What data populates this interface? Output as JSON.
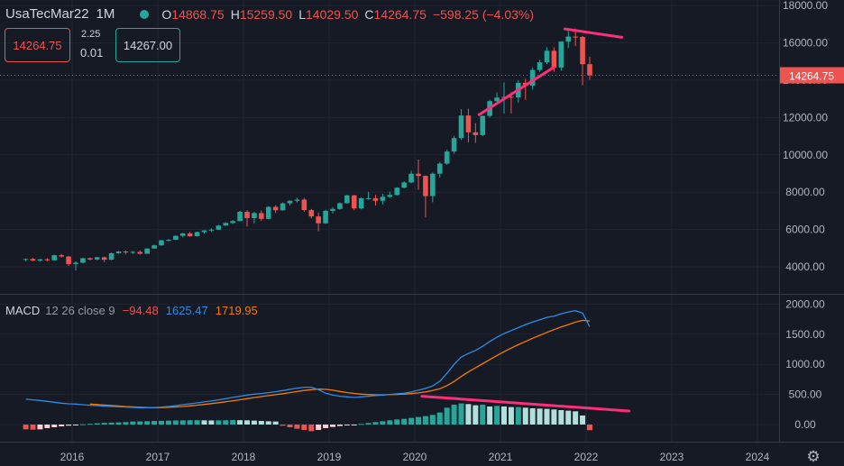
{
  "header": {
    "symbol": "UsaTecMar22",
    "timeframe": "1M",
    "open_label": "O",
    "open": "14868.75",
    "high_label": "H",
    "high": "15259.50",
    "low_label": "L",
    "low": "14029.50",
    "close_label": "C",
    "close": "14264.75",
    "change": "−598.25 (−4.03%)"
  },
  "trade": {
    "sell": "14264.75",
    "buy": "14267.00",
    "spread_top": "2.25",
    "spread_bottom": "0.01"
  },
  "price_label": "14264.75",
  "macd": {
    "name": "MACD",
    "params": "12 26 close 9",
    "hist": "−94.48",
    "macd": "1625.47",
    "signal": "1719.95"
  },
  "colors": {
    "bg": "#161a25",
    "up": "#26a69a",
    "down": "#ef5350",
    "macd": "#2e8be6",
    "signal": "#f57c00",
    "trendline": "#ff2e7a"
  },
  "chart_data": [
    {
      "type": "candlestick",
      "x_ticks": [
        "2016",
        "2017",
        "2018",
        "2019",
        "2020",
        "2021",
        "2022",
        "2023",
        "2024"
      ],
      "y_ticks": [
        "4000.00",
        "6000.00",
        "8000.00",
        "10000.00",
        "12000.00",
        "14000.00",
        "16000.00",
        "18000.00"
      ],
      "ylim": [
        3000,
        18000
      ],
      "x_start": "2015-06",
      "candles": [
        [
          4380,
          4450,
          4290,
          4420
        ],
        [
          4420,
          4480,
          4300,
          4330
        ],
        [
          4330,
          4420,
          4280,
          4400
        ],
        [
          4400,
          4460,
          4300,
          4350
        ],
        [
          4350,
          4650,
          4330,
          4620
        ],
        [
          4620,
          4690,
          4500,
          4550
        ],
        [
          4550,
          4590,
          4050,
          4150
        ],
        [
          4150,
          4300,
          3800,
          4220
        ],
        [
          4220,
          4480,
          4180,
          4460
        ],
        [
          4460,
          4490,
          4350,
          4390
        ],
        [
          4390,
          4530,
          4350,
          4510
        ],
        [
          4510,
          4540,
          4250,
          4380
        ],
        [
          4380,
          4760,
          4350,
          4730
        ],
        [
          4730,
          4850,
          4700,
          4820
        ],
        [
          4820,
          4870,
          4660,
          4770
        ],
        [
          4770,
          4850,
          4690,
          4800
        ],
        [
          4800,
          4880,
          4660,
          4700
        ],
        [
          4700,
          4990,
          4690,
          4980
        ],
        [
          4980,
          5180,
          4960,
          5150
        ],
        [
          5150,
          5440,
          5130,
          5420
        ],
        [
          5420,
          5480,
          5360,
          5450
        ],
        [
          5450,
          5680,
          5430,
          5660
        ],
        [
          5660,
          5820,
          5580,
          5790
        ],
        [
          5790,
          5880,
          5600,
          5640
        ],
        [
          5640,
          5880,
          5620,
          5860
        ],
        [
          5860,
          5960,
          5780,
          5950
        ],
        [
          5950,
          6060,
          5860,
          5990
        ],
        [
          5990,
          6250,
          5980,
          6210
        ],
        [
          6210,
          6390,
          6200,
          6350
        ],
        [
          6350,
          6500,
          6300,
          6450
        ],
        [
          6450,
          7000,
          6430,
          6950
        ],
        [
          6950,
          7040,
          6160,
          6610
        ],
        [
          6610,
          6950,
          6320,
          6880
        ],
        [
          6880,
          7020,
          6460,
          6570
        ],
        [
          6570,
          7250,
          6560,
          7210
        ],
        [
          7210,
          7300,
          6880,
          7030
        ],
        [
          7030,
          7450,
          7000,
          7400
        ],
        [
          7400,
          7560,
          7290,
          7540
        ],
        [
          7540,
          7700,
          7450,
          7600
        ],
        [
          7600,
          7690,
          6950,
          7040
        ],
        [
          7040,
          7100,
          6600,
          6700
        ],
        [
          6700,
          6900,
          5900,
          6330
        ],
        [
          6330,
          7050,
          6290,
          7000
        ],
        [
          7000,
          7200,
          6860,
          7100
        ],
        [
          7100,
          7450,
          7060,
          7410
        ],
        [
          7410,
          7860,
          7390,
          7830
        ],
        [
          7830,
          7850,
          7030,
          7130
        ],
        [
          7130,
          7720,
          7080,
          7670
        ],
        [
          7670,
          8020,
          7600,
          7680
        ],
        [
          7680,
          7860,
          7280,
          7540
        ],
        [
          7540,
          7920,
          7340,
          7750
        ],
        [
          7750,
          8030,
          7700,
          7850
        ],
        [
          7850,
          8270,
          7820,
          8240
        ],
        [
          8240,
          8580,
          8200,
          8520
        ],
        [
          8520,
          9150,
          8480,
          8990
        ],
        [
          8990,
          9750,
          8120,
          8870
        ],
        [
          8870,
          8900,
          6650,
          7790
        ],
        [
          7790,
          9050,
          7460,
          8990
        ],
        [
          8990,
          9620,
          8780,
          9530
        ],
        [
          9530,
          10280,
          9470,
          10180
        ],
        [
          10180,
          11020,
          10060,
          10900
        ],
        [
          10900,
          12450,
          10800,
          12110
        ],
        [
          12110,
          12470,
          10660,
          11210
        ],
        [
          11210,
          11700,
          10650,
          11060
        ],
        [
          11060,
          12100,
          11000,
          12090
        ],
        [
          12090,
          12960,
          12000,
          12880
        ],
        [
          12880,
          13350,
          12720,
          13070
        ],
        [
          13070,
          13880,
          12210,
          13110
        ],
        [
          13110,
          13360,
          12210,
          13080
        ],
        [
          13080,
          13990,
          12800,
          13860
        ],
        [
          13860,
          14080,
          12950,
          13710
        ],
        [
          13710,
          14670,
          13500,
          14550
        ],
        [
          14550,
          15100,
          14440,
          14960
        ],
        [
          14960,
          15770,
          14870,
          15580
        ],
        [
          15580,
          15760,
          14450,
          14680
        ],
        [
          14680,
          16080,
          14510,
          16070
        ],
        [
          16070,
          16650,
          15720,
          16340
        ],
        [
          16340,
          16770,
          15830,
          16320
        ],
        [
          16320,
          16370,
          13730,
          14860
        ],
        [
          14860,
          15260,
          14030,
          14265
        ]
      ]
    },
    {
      "type": "macd",
      "params": "12 26 close 9",
      "y_ticks": [
        "0.00",
        "500.00",
        "1000.00",
        "1500.00",
        "2000.00"
      ],
      "ylim": [
        -300,
        2100
      ],
      "macd": [
        420,
        410,
        400,
        385,
        370,
        355,
        345,
        340,
        330,
        320,
        315,
        305,
        300,
        296,
        290,
        285,
        280,
        278,
        280,
        290,
        300,
        315,
        330,
        345,
        360,
        375,
        390,
        410,
        430,
        450,
        470,
        490,
        505,
        515,
        530,
        545,
        565,
        585,
        605,
        620,
        620,
        580,
        520,
        490,
        470,
        460,
        450,
        460,
        470,
        480,
        490,
        500,
        510,
        520,
        540,
        570,
        600,
        640,
        720,
        850,
        1000,
        1120,
        1180,
        1230,
        1300,
        1380,
        1450,
        1510,
        1560,
        1610,
        1660,
        1700,
        1740,
        1780,
        1800,
        1840,
        1870,
        1890,
        1850,
        1625
      ],
      "signal": [
        null,
        null,
        null,
        null,
        null,
        null,
        null,
        null,
        null,
        340,
        332,
        324,
        316,
        308,
        300,
        294,
        288,
        283,
        280,
        282,
        286,
        292,
        300,
        310,
        322,
        334,
        348,
        362,
        378,
        394,
        412,
        430,
        448,
        464,
        480,
        496,
        512,
        530,
        548,
        566,
        580,
        588,
        586,
        570,
        550,
        532,
        516,
        504,
        498,
        494,
        494,
        496,
        500,
        506,
        514,
        526,
        542,
        564,
        594,
        646,
        716,
        798,
        874,
        942,
        1010,
        1080,
        1146,
        1210,
        1270,
        1326,
        1380,
        1432,
        1482,
        1530,
        1576,
        1620,
        1660,
        1700,
        1730,
        1720
      ],
      "histogram": [
        -80,
        -85,
        -80,
        -60,
        -45,
        -30,
        -18,
        -5,
        5,
        12,
        20,
        28,
        32,
        35,
        40,
        50,
        52,
        55,
        60,
        62,
        65,
        68,
        70,
        72,
        72,
        70,
        68,
        70,
        72,
        75,
        72,
        70,
        65,
        60,
        55,
        50,
        -20,
        -45,
        -70,
        -90,
        -110,
        -90,
        -60,
        -40,
        -25,
        -15,
        -8,
        10,
        25,
        40,
        55,
        70,
        85,
        95,
        110,
        125,
        140,
        160,
        200,
        280,
        330,
        350,
        340,
        320,
        330,
        300,
        310,
        300,
        290,
        290,
        280,
        270,
        265,
        260,
        250,
        240,
        230,
        220,
        150,
        -94
      ]
    }
  ]
}
